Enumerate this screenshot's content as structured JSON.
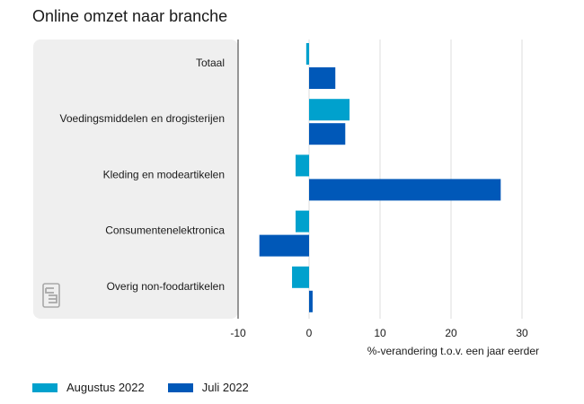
{
  "chart_data": {
    "type": "bar",
    "orientation": "horizontal",
    "title": "Online omzet naar branche",
    "xlabel": "%-verandering t.o.v. een jaar eerder",
    "ylabel": "",
    "categories": [
      "Totaal",
      "Voedingsmiddelen en drogisterijen",
      "Kleding en modeartikelen",
      "Consumentenelektronica",
      "Overig non-foodartikelen"
    ],
    "series": [
      {
        "name": "Augustus 2022",
        "color": "#00a1cd",
        "values": [
          -0.4,
          5.7,
          -1.9,
          -1.9,
          -2.4
        ]
      },
      {
        "name": "Juli 2022",
        "color": "#0058b8",
        "values": [
          3.7,
          5.1,
          27.0,
          -7.0,
          0.5
        ]
      }
    ],
    "xlim": [
      -10,
      30
    ],
    "xticks": [
      -10,
      0,
      10,
      20,
      30
    ],
    "grid": true,
    "legend_position": "bottom-left"
  },
  "logo_icon": "cbs-logo-icon"
}
